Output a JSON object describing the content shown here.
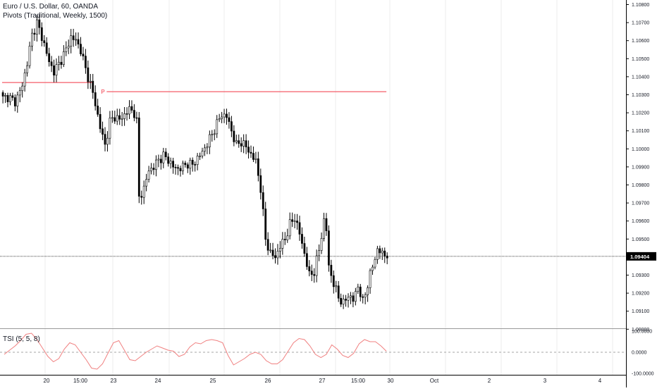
{
  "header": {
    "symbol": "Euro / U.S. Dollar, 60, OANDA",
    "pivots": "Pivots (Traditional, Weekly, 1500)"
  },
  "indicator": {
    "title": "TSI (5, 5, 8)"
  },
  "colors": {
    "up_candle": "#ffffff",
    "down_candle": "#000000",
    "wick": "#000000",
    "pivot_line": "#f23645",
    "tsi_line": "#f08080",
    "grid": "#eeeeee",
    "axis": "#000000"
  },
  "chart_data": [
    {
      "type": "candlestick",
      "title": "Euro / U.S. Dollar, 60, OANDA",
      "y_ticks": [
        "1.10800",
        "1.10700",
        "1.10600",
        "1.10500",
        "1.10400",
        "1.10300",
        "1.10200",
        "1.10100",
        "1.10000",
        "1.09900",
        "1.09800",
        "1.09700",
        "1.09600",
        "1.09500",
        "1.09300",
        "1.09200",
        "1.09100",
        "1.09000"
      ],
      "ylim": [
        1.0896,
        1.1083
      ],
      "last_price": "1.09404",
      "last_price_value": 1.09404,
      "x_ticks": [
        "20",
        "15:00",
        "23",
        "24",
        "25",
        "26",
        "27",
        "15:00",
        "30",
        "Oct",
        "2",
        "3",
        "4"
      ],
      "pivot_label": "P",
      "pivot_levels": [
        {
          "value": 1.10368,
          "from_index": 0,
          "to_index": 37
        },
        {
          "value": 1.10317,
          "from_index": 43,
          "to_index": 158
        }
      ],
      "close_path": [
        [
          0,
          1.1028
        ],
        [
          2,
          1.1029
        ],
        [
          5,
          1.1026
        ],
        [
          8,
          1.1035
        ],
        [
          10,
          1.1048
        ],
        [
          12,
          1.1063
        ],
        [
          14,
          1.107
        ],
        [
          15,
          1.1066
        ],
        [
          17,
          1.1058
        ],
        [
          19,
          1.1048
        ],
        [
          21,
          1.1043
        ],
        [
          23,
          1.1047
        ],
        [
          26,
          1.1055
        ],
        [
          28,
          1.1062
        ],
        [
          30,
          1.106
        ],
        [
          32,
          1.1055
        ],
        [
          34,
          1.1044
        ],
        [
          36,
          1.1036
        ],
        [
          38,
          1.1025
        ],
        [
          40,
          1.1012
        ],
        [
          42,
          1.1002
        ],
        [
          44,
          1.1015
        ],
        [
          46,
          1.1018
        ],
        [
          48,
          1.1016
        ],
        [
          50,
          1.1019
        ],
        [
          52,
          1.1022
        ],
        [
          54,
          1.102
        ],
        [
          55,
          1.1015
        ],
        [
          56,
          1.0973
        ],
        [
          58,
          1.0978
        ],
        [
          60,
          1.0988
        ],
        [
          62,
          1.099
        ],
        [
          64,
          1.0994
        ],
        [
          66,
          1.0996
        ],
        [
          68,
          1.0994
        ],
        [
          70,
          1.099
        ],
        [
          72,
          1.0989
        ],
        [
          74,
          1.099
        ],
        [
          76,
          1.0992
        ],
        [
          78,
          1.0991
        ],
        [
          80,
          1.0995
        ],
        [
          82,
          1.0998
        ],
        [
          84,
          1.1003
        ],
        [
          86,
          1.1008
        ],
        [
          88,
          1.1014
        ],
        [
          90,
          1.1019
        ],
        [
          92,
          1.1018
        ],
        [
          94,
          1.101
        ],
        [
          96,
          1.1002
        ],
        [
          98,
          1.1004
        ],
        [
          100,
          1.1001
        ],
        [
          102,
          1.0997
        ],
        [
          104,
          1.0993
        ],
        [
          106,
          1.0978
        ],
        [
          108,
          1.095
        ],
        [
          110,
          1.0942
        ],
        [
          112,
          1.094
        ],
        [
          114,
          1.0946
        ],
        [
          116,
          1.095
        ],
        [
          118,
          1.0958
        ],
        [
          120,
          1.0962
        ],
        [
          122,
          1.0953
        ],
        [
          124,
          1.0942
        ],
        [
          126,
          1.093
        ],
        [
          128,
          1.0932
        ],
        [
          130,
          1.0944
        ],
        [
          132,
          1.096
        ],
        [
          133,
          1.0955
        ],
        [
          134,
          1.0935
        ],
        [
          136,
          1.0925
        ],
        [
          138,
          1.0918
        ],
        [
          140,
          1.0914
        ],
        [
          142,
          1.0919
        ],
        [
          144,
          1.0916
        ],
        [
          146,
          1.0924
        ],
        [
          148,
          1.0915
        ],
        [
          150,
          1.0925
        ],
        [
          152,
          1.0935
        ],
        [
          154,
          1.0944
        ],
        [
          156,
          1.0942
        ],
        [
          158,
          1.0941
        ]
      ]
    },
    {
      "type": "line",
      "title": "TSI (5, 5, 8)",
      "y_ticks": [
        "100.0000",
        "0.0000",
        "-100.0000"
      ],
      "ylim": [
        -100,
        100
      ],
      "reference_line": 0,
      "values": [
        -10,
        10,
        30,
        55,
        85,
        90,
        60,
        20,
        -20,
        -45,
        -30,
        15,
        45,
        35,
        0,
        -35,
        -75,
        -80,
        -55,
        -5,
        45,
        55,
        10,
        -35,
        -40,
        -20,
        0,
        15,
        30,
        20,
        10,
        5,
        -20,
        -10,
        25,
        45,
        40,
        55,
        60,
        55,
        45,
        -15,
        -60,
        -45,
        -30,
        -10,
        0,
        -10,
        -40,
        -55,
        -55,
        -35,
        5,
        45,
        65,
        60,
        30,
        -10,
        -25,
        -10,
        35,
        15,
        -15,
        -25,
        -5,
        40,
        60,
        50,
        50,
        30,
        5
      ]
    }
  ]
}
